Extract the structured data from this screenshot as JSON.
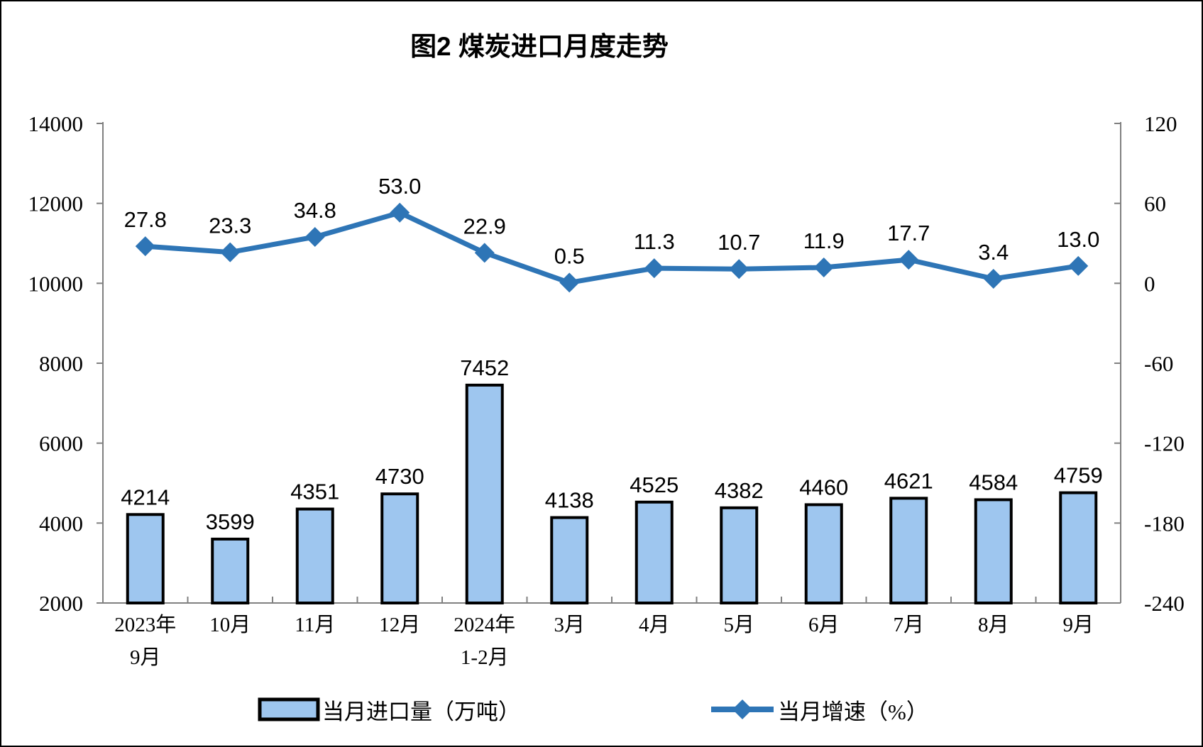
{
  "title": "图2 煤炭进口月度走势",
  "chart_data": {
    "type": "bar",
    "subtype": "bar-line-combo",
    "title": "图2 煤炭进口月度走势",
    "categories": [
      "2023年\n9月",
      "10月",
      "11月",
      "12月",
      "2024年\n1-2月",
      "3月",
      "4月",
      "5月",
      "6月",
      "7月",
      "8月",
      "9月"
    ],
    "series": [
      {
        "name": "当月进口量（万吨）",
        "type": "bar",
        "axis": "left",
        "values": [
          4214,
          3599,
          4351,
          4730,
          7452,
          4138,
          4525,
          4382,
          4460,
          4621,
          4584,
          4759
        ],
        "labels": [
          "4214",
          "3599",
          "4351",
          "4730",
          "7452",
          "4138",
          "4525",
          "4382",
          "4460",
          "4621",
          "4584",
          "4759"
        ],
        "fill": "#9EC6EF",
        "stroke": "#000000"
      },
      {
        "name": "当月增速（%）",
        "type": "line",
        "axis": "right",
        "values": [
          27.8,
          23.3,
          34.8,
          53.0,
          22.9,
          0.5,
          11.3,
          10.7,
          11.9,
          17.7,
          3.4,
          13.0
        ],
        "labels": [
          "27.8",
          "23.3",
          "34.8",
          "53.0",
          "22.9",
          "0.5",
          "11.3",
          "10.7",
          "11.9",
          "17.7",
          "3.4",
          "13.0"
        ],
        "color": "#2E75B6",
        "marker": "diamond"
      }
    ],
    "left_axis": {
      "min": 2000,
      "max": 14000,
      "ticks": [
        14000,
        12000,
        10000,
        8000,
        6000,
        4000,
        2000
      ]
    },
    "right_axis": {
      "min": -240,
      "max": 120,
      "ticks": [
        120,
        60,
        0,
        -60,
        -120,
        -180,
        -240
      ]
    },
    "grid": false,
    "legend_position": "bottom",
    "axis_color": "#808080",
    "text_color": "#000000"
  }
}
